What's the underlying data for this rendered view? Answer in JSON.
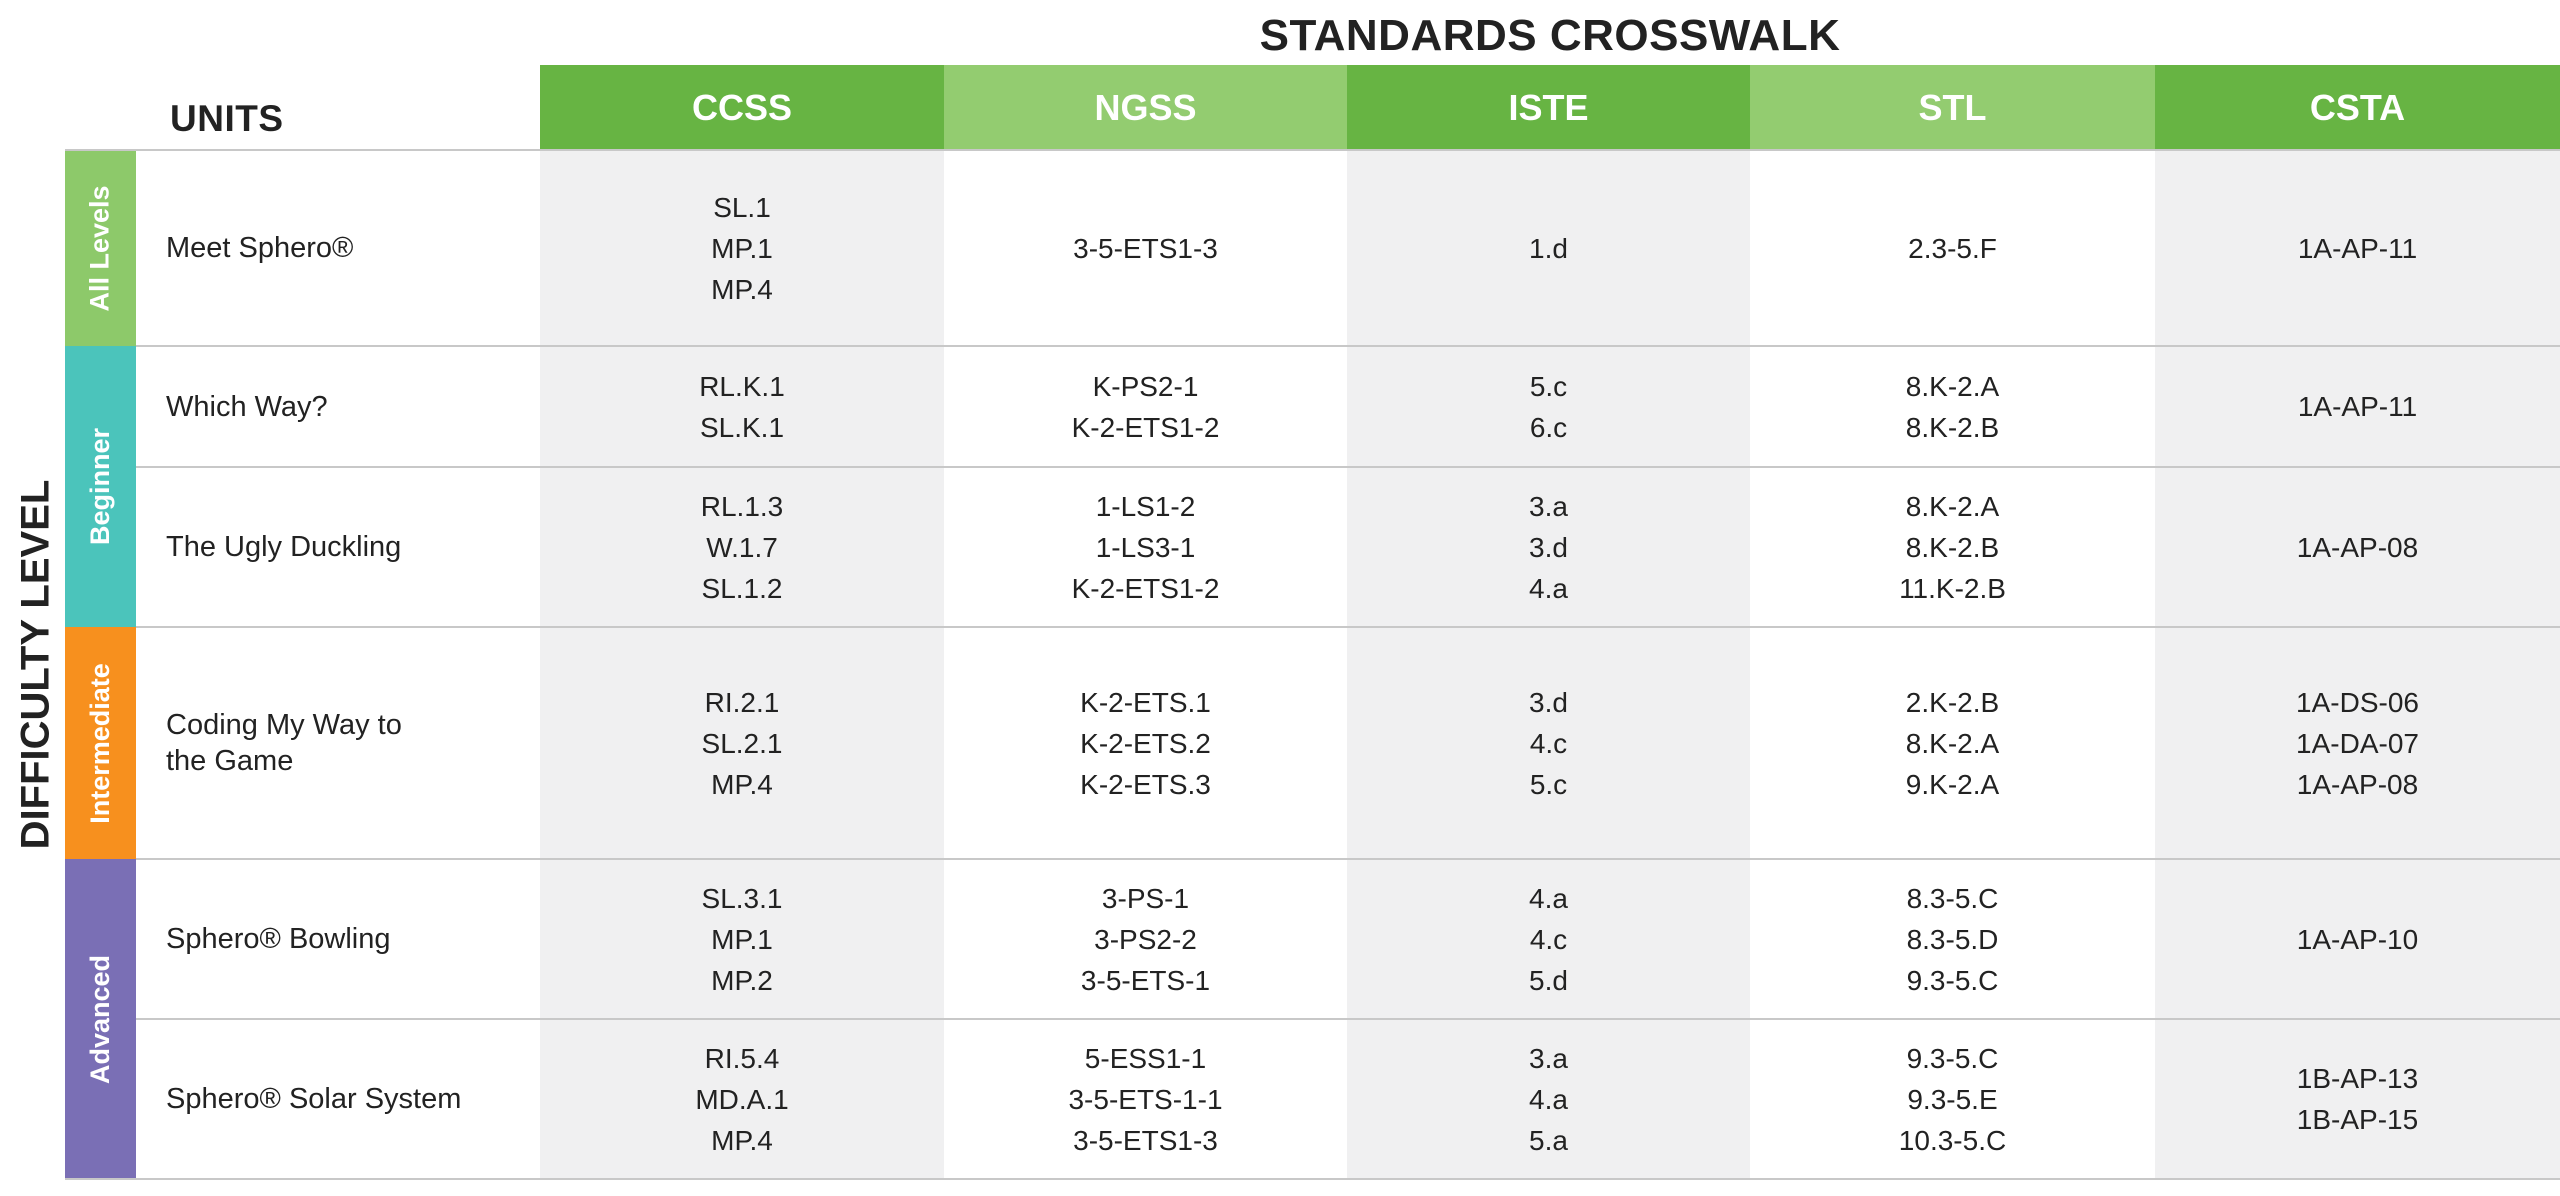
{
  "header": {
    "title": "STANDARDS CROSSWALK",
    "units_label": "UNITS",
    "difficulty_label": "DIFFICULTY LEVEL"
  },
  "columns": [
    "CCSS",
    "NGSS",
    "ISTE",
    "STL",
    "CSTA"
  ],
  "levels": [
    {
      "label": "All Levels",
      "rows": [
        {
          "unit": [
            "Meet Sphero®"
          ],
          "cells": [
            [
              "SL.1",
              "MP.1",
              "MP.4"
            ],
            [
              "3-5-ETS1-3"
            ],
            [
              "1.d"
            ],
            [
              "2.3-5.F"
            ],
            [
              "1A-AP-11"
            ]
          ]
        }
      ]
    },
    {
      "label": "Beginner",
      "rows": [
        {
          "unit": [
            "Which Way?"
          ],
          "cells": [
            [
              "RL.K.1",
              "SL.K.1"
            ],
            [
              "K-PS2-1",
              "K-2-ETS1-2"
            ],
            [
              "5.c",
              "6.c"
            ],
            [
              "8.K-2.A",
              "8.K-2.B"
            ],
            [
              "1A-AP-11"
            ]
          ]
        },
        {
          "unit": [
            "The Ugly Duckling"
          ],
          "cells": [
            [
              "RL.1.3",
              "W.1.7",
              "SL.1.2"
            ],
            [
              "1-LS1-2",
              "1-LS3-1",
              "K-2-ETS1-2"
            ],
            [
              "3.a",
              "3.d",
              "4.a"
            ],
            [
              "8.K-2.A",
              "8.K-2.B",
              "11.K-2.B"
            ],
            [
              "1A-AP-08"
            ]
          ]
        }
      ]
    },
    {
      "label": "Intermediate",
      "rows": [
        {
          "unit": [
            "Coding My Way to",
            "the Game"
          ],
          "cells": [
            [
              "RI.2.1",
              "SL.2.1",
              "MP.4"
            ],
            [
              "K-2-ETS.1",
              "K-2-ETS.2",
              "K-2-ETS.3"
            ],
            [
              "3.d",
              "4.c",
              "5.c"
            ],
            [
              "2.K-2.B",
              "8.K-2.A",
              "9.K-2.A"
            ],
            [
              "1A-DS-06",
              "1A-DA-07",
              "1A-AP-08"
            ]
          ]
        }
      ]
    },
    {
      "label": "Advanced",
      "rows": [
        {
          "unit": [
            "Sphero® Bowling"
          ],
          "cells": [
            [
              "SL.3.1",
              "MP.1",
              "MP.2"
            ],
            [
              "3-PS-1",
              "3-PS2-2",
              "3-5-ETS-1"
            ],
            [
              "4.a",
              "4.c",
              "5.d"
            ],
            [
              "8.3-5.C",
              "8.3-5.D",
              "9.3-5.C"
            ],
            [
              "1A-AP-10"
            ]
          ]
        },
        {
          "unit": [
            "Sphero® Solar System"
          ],
          "cells": [
            [
              "RI.5.4",
              "MD.A.1",
              "MP.4"
            ],
            [
              "5-ESS1-1",
              "3-5-ETS-1-1",
              "3-5-ETS1-3"
            ],
            [
              "3.a",
              "4.a",
              "5.a"
            ],
            [
              "9.3-5.C",
              "9.3-5.E",
              "10.3-5.C"
            ],
            [
              "1B-AP-13",
              "1B-AP-15"
            ]
          ]
        }
      ]
    }
  ]
}
